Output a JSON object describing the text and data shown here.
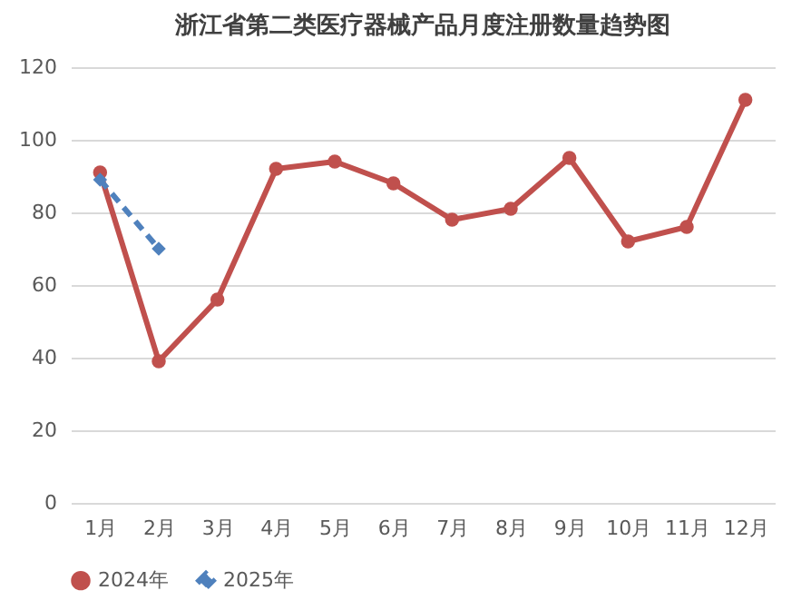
{
  "chart_data": {
    "type": "line",
    "title": "浙江省第二类医疗器械产品月度注册数量趋势图",
    "categories": [
      "1月",
      "2月",
      "3月",
      "4月",
      "5月",
      "6月",
      "7月",
      "8月",
      "9月",
      "10月",
      "11月",
      "12月"
    ],
    "series": [
      {
        "name": "2024年",
        "color": "#c0504d",
        "marker": "circle",
        "line_style": "solid",
        "values": [
          91,
          39,
          56,
          92,
          94,
          88,
          78,
          81,
          95,
          72,
          76,
          111
        ]
      },
      {
        "name": "2025年",
        "color": "#4f81bd",
        "marker": "diamond",
        "line_style": "dashed",
        "values": [
          89,
          70,
          null,
          null,
          null,
          null,
          null,
          null,
          null,
          null,
          null,
          null
        ]
      }
    ],
    "ylim": [
      0,
      120
    ],
    "yticks": [
      0,
      20,
      40,
      60,
      80,
      100,
      120
    ],
    "grid": "y",
    "legend": "bottom"
  }
}
